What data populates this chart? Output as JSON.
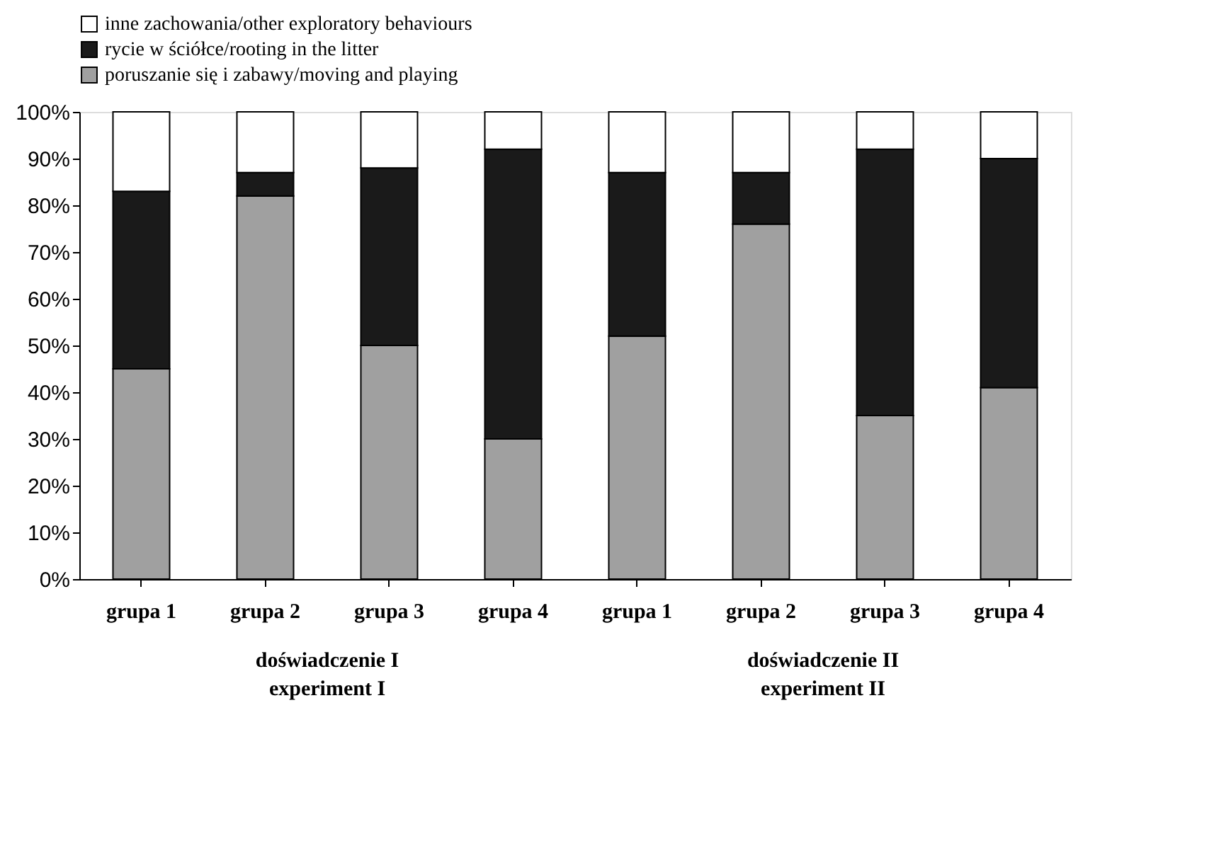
{
  "chart_data": {
    "type": "bar",
    "stacked": true,
    "legend": "top",
    "categories": [
      "grupa 1",
      "grupa 2",
      "grupa 3",
      "grupa 4",
      "grupa 1",
      "grupa 2",
      "grupa 3",
      "grupa 4"
    ],
    "series": [
      {
        "name": "poruszanie się i zabawy/moving and playing",
        "color": "#a0a0a0",
        "values": [
          45,
          82,
          50,
          30,
          52,
          76,
          35,
          41
        ]
      },
      {
        "name": "rycie w ściółce/rooting in the litter",
        "color": "#1a1a1a",
        "values": [
          38,
          5,
          38,
          62,
          35,
          11,
          57,
          49
        ]
      },
      {
        "name": "inne zachowania/other exploratory behaviours",
        "color": "#ffffff",
        "values": [
          17,
          13,
          12,
          8,
          13,
          13,
          8,
          10
        ]
      }
    ],
    "ylim": [
      0,
      100
    ],
    "yticks": [
      {
        "value": 0,
        "label": "0%"
      },
      {
        "value": 10,
        "label": "10%"
      },
      {
        "value": 20,
        "label": "20%"
      },
      {
        "value": 30,
        "label": "30%"
      },
      {
        "value": 40,
        "label": "40%"
      },
      {
        "value": 50,
        "label": "50%"
      },
      {
        "value": 60,
        "label": "60%"
      },
      {
        "value": 70,
        "label": "70%"
      },
      {
        "value": 80,
        "label": "80%"
      },
      {
        "value": 90,
        "label": "90%"
      },
      {
        "value": 100,
        "label": "100%"
      }
    ],
    "annotations": [
      "doświadczenie I\nexperiment I",
      "doświadczenie II\nexperiment II"
    ]
  }
}
